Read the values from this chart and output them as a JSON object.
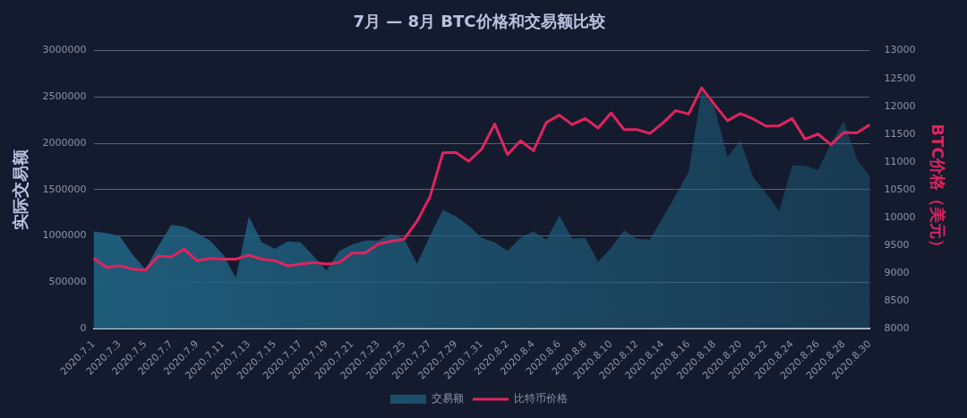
{
  "chart_data": {
    "type": "area",
    "title": "7月 — 8月 BTC价格和交易额比较",
    "ylabel": "实际交易额",
    "y2label": "BTC价格（美元）",
    "categories": [
      "2020.7.1",
      null,
      "2020.7.3",
      null,
      "2020.7.5",
      null,
      "2020.7.7",
      null,
      "2020.7.9",
      null,
      "2020.7.11",
      null,
      "2020.7.13",
      null,
      "2020.7.15",
      null,
      "2020.7.17",
      null,
      "2020.7.19",
      null,
      "2020.7.21",
      null,
      "2020.7.23",
      null,
      "2020.7.25",
      null,
      "2020.7.27",
      null,
      "2020.7.29",
      null,
      "2020.7.31",
      null,
      "2020.8.2",
      null,
      "2020.8.4",
      null,
      "2020.8.6",
      null,
      "2020.8.8",
      null,
      "2020.8.10",
      null,
      "2020.8.12",
      null,
      "2020.8.14",
      null,
      "2020.8.16",
      null,
      "2020.8.18",
      null,
      "2020.8.20",
      null,
      "2020.8.22",
      null,
      "2020.8.24",
      null,
      "2020.8.26",
      null,
      "2020.8.28",
      null,
      "2020.8.30"
    ],
    "series": [
      {
        "name": "交易额",
        "color": "#1f5f7e",
        "values": [
          1050000,
          1030000,
          1000000,
          800000,
          640000,
          890000,
          1120000,
          1100000,
          1030000,
          950000,
          800000,
          550000,
          1210000,
          930000,
          860000,
          940000,
          930000,
          780000,
          630000,
          840000,
          910000,
          950000,
          950000,
          1020000,
          970000,
          700000,
          1000000,
          1280000,
          1210000,
          1110000,
          980000,
          930000,
          840000,
          980000,
          1050000,
          960000,
          1220000,
          970000,
          980000,
          720000,
          870000,
          1060000,
          970000,
          960000,
          1200000,
          1440000,
          1690000,
          2560000,
          2390000,
          1850000,
          2030000,
          1630000,
          1460000,
          1270000,
          1760000,
          1760000,
          1710000,
          2000000,
          2240000,
          1830000,
          1640000
        ]
      },
      {
        "name": "比特币价格",
        "type": "line",
        "axis": "y2",
        "color": "#e0245e",
        "values": [
          9260,
          9100,
          9130,
          9070,
          9050,
          9300,
          9290,
          9430,
          9220,
          9260,
          9250,
          9250,
          9320,
          9250,
          9220,
          9130,
          9160,
          9190,
          9160,
          9190,
          9360,
          9360,
          9520,
          9570,
          9610,
          9930,
          10370,
          11160,
          11170,
          11010,
          11230,
          11680,
          11130,
          11380,
          11200,
          11710,
          11840,
          11670,
          11780,
          11610,
          11880,
          11580,
          11580,
          11510,
          11700,
          11920,
          11860,
          12330,
          12030,
          11740,
          11870,
          11770,
          11640,
          11650,
          11780,
          11410,
          11500,
          11310,
          11530,
          11520,
          11670
        ]
      }
    ],
    "ylim": [
      0,
      3000000
    ],
    "yticks": [
      0,
      500000,
      1000000,
      1500000,
      2000000,
      2500000,
      3000000
    ],
    "y2lim": [
      8000,
      13000
    ],
    "y2ticks": [
      8000,
      8500,
      9000,
      9500,
      10000,
      10500,
      11000,
      11500,
      12000,
      12500,
      13000
    ],
    "grid": "y",
    "legend": "bottom",
    "marker": "none",
    "line_style": "solid"
  }
}
